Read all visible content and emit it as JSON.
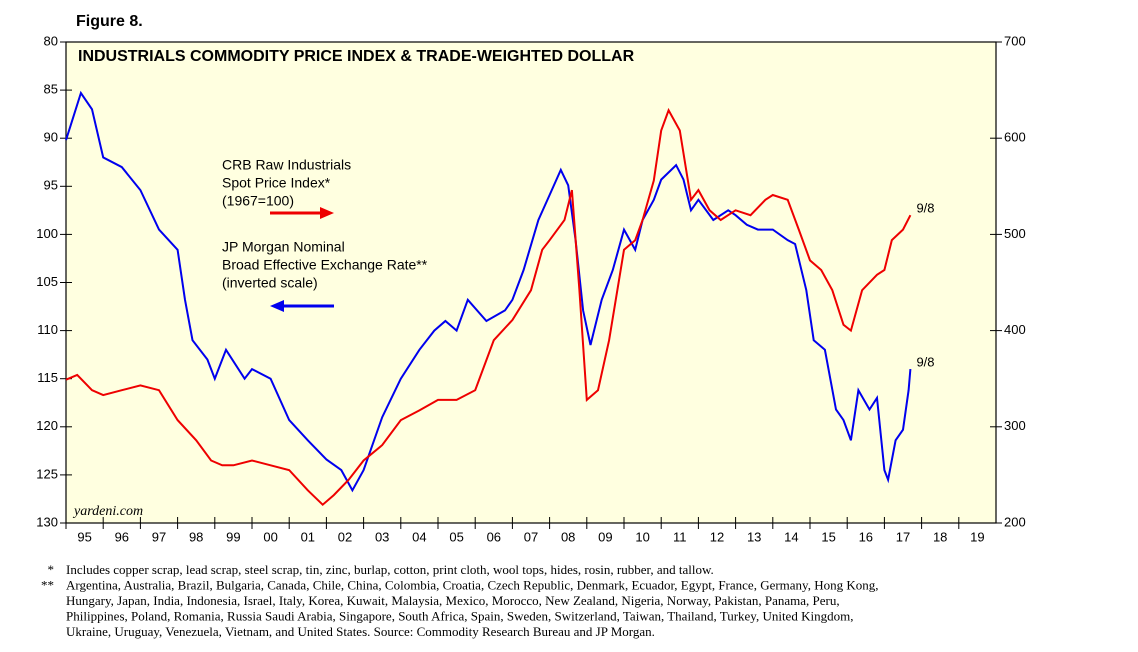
{
  "chart_data": {
    "type": "line",
    "figure_label": "Figure 8.",
    "title": "INDUSTRIALS COMMODITY PRICE INDEX & TRADE-WEIGHTED DOLLAR",
    "source_tag": "yardeni.com",
    "xlim": [
      1995,
      2020
    ],
    "xticks": [
      {
        "value": 1995,
        "label": "95"
      },
      {
        "value": 1996,
        "label": "96"
      },
      {
        "value": 1997,
        "label": "97"
      },
      {
        "value": 1998,
        "label": "98"
      },
      {
        "value": 1999,
        "label": "99"
      },
      {
        "value": 2000,
        "label": "00"
      },
      {
        "value": 2001,
        "label": "01"
      },
      {
        "value": 2002,
        "label": "02"
      },
      {
        "value": 2003,
        "label": "03"
      },
      {
        "value": 2004,
        "label": "04"
      },
      {
        "value": 2005,
        "label": "05"
      },
      {
        "value": 2006,
        "label": "06"
      },
      {
        "value": 2007,
        "label": "07"
      },
      {
        "value": 2008,
        "label": "08"
      },
      {
        "value": 2009,
        "label": "09"
      },
      {
        "value": 2010,
        "label": "10"
      },
      {
        "value": 2011,
        "label": "11"
      },
      {
        "value": 2012,
        "label": "12"
      },
      {
        "value": 2013,
        "label": "13"
      },
      {
        "value": 2014,
        "label": "14"
      },
      {
        "value": 2015,
        "label": "15"
      },
      {
        "value": 2016,
        "label": "16"
      },
      {
        "value": 2017,
        "label": "17"
      },
      {
        "value": 2018,
        "label": "18"
      },
      {
        "value": 2019,
        "label": "19"
      }
    ],
    "ylim": [
      130,
      80
    ],
    "yticks": [
      80,
      85,
      90,
      95,
      100,
      105,
      110,
      115,
      120,
      125,
      130
    ],
    "y2lim": [
      200,
      700
    ],
    "y2ticks": [
      200,
      300,
      400,
      500,
      600,
      700
    ],
    "series": [
      {
        "name": "JP Morgan Nominal Broad Effective Exchange Rate** (inverted scale)",
        "legend_lines": [
          "JP Morgan Nominal",
          "Broad Effective Exchange Rate**",
          "(inverted scale)"
        ],
        "color": "#0000ee",
        "axis": "y",
        "end_label": "9/8",
        "x": [
          1995.0,
          1995.4,
          1995.7,
          1996.0,
          1996.5,
          1997.0,
          1997.5,
          1998.0,
          1998.2,
          1998.4,
          1998.8,
          1999.0,
          1999.3,
          1999.8,
          2000.0,
          2000.5,
          2001.0,
          2001.5,
          2002.0,
          2002.4,
          2002.7,
          2003.0,
          2003.5,
          2004.0,
          2004.5,
          2004.9,
          2005.2,
          2005.5,
          2005.8,
          2006.3,
          2006.8,
          2007.0,
          2007.3,
          2007.7,
          2008.0,
          2008.3,
          2008.5,
          2008.7,
          2008.9,
          2009.1,
          2009.4,
          2009.7,
          2010.0,
          2010.3,
          2010.5,
          2010.8,
          2011.0,
          2011.4,
          2011.6,
          2011.8,
          2012.0,
          2012.4,
          2012.8,
          2013.0,
          2013.3,
          2013.6,
          2014.0,
          2014.4,
          2014.6,
          2014.9,
          2015.1,
          2015.4,
          2015.7,
          2015.9,
          2016.1,
          2016.3,
          2016.6,
          2016.8,
          2017.0,
          2017.1,
          2017.3,
          2017.5,
          2017.65,
          2017.7
        ],
        "values": [
          90.2,
          85.3,
          87,
          92,
          93,
          95.4,
          99.5,
          101.6,
          106.8,
          111,
          113,
          115,
          112,
          115,
          114,
          115,
          119.3,
          121.4,
          123.4,
          124.5,
          126.6,
          124.5,
          119,
          115,
          112,
          110,
          109,
          110,
          106.8,
          109,
          107.9,
          106.8,
          103.7,
          98.5,
          95.9,
          93.3,
          94.9,
          100.6,
          107.9,
          111.5,
          106.8,
          103.7,
          99.5,
          101.6,
          98.5,
          96.4,
          94.3,
          92.8,
          94.3,
          97.5,
          96.4,
          98.5,
          97.5,
          98,
          99,
          99.5,
          99.5,
          100.6,
          101,
          105.8,
          111,
          112,
          118.2,
          119.3,
          121.4,
          116.2,
          118.2,
          117,
          124.5,
          125.5,
          121.4,
          120.3,
          116.2,
          114
        ]
      },
      {
        "name": "CRB Raw Industrials Spot Price Index* (1967=100)",
        "legend_lines": [
          "CRB Raw Industrials",
          "Spot Price Index*",
          "(1967=100)"
        ],
        "color": "#ee0000",
        "axis": "y2",
        "end_label": "9/8",
        "x": [
          1995.0,
          1995.3,
          1995.7,
          1996.0,
          1996.5,
          1997.0,
          1997.5,
          1998.0,
          1998.5,
          1998.9,
          1999.2,
          1999.5,
          2000.0,
          2000.5,
          2001.0,
          2001.5,
          2001.9,
          2002.2,
          2002.6,
          2003.0,
          2003.5,
          2004.0,
          2004.5,
          2005.0,
          2005.5,
          2006.0,
          2006.5,
          2007.0,
          2007.5,
          2007.8,
          2008.0,
          2008.4,
          2008.6,
          2008.8,
          2009.0,
          2009.3,
          2009.6,
          2010.0,
          2010.3,
          2010.5,
          2010.8,
          2011.0,
          2011.2,
          2011.5,
          2011.8,
          2012.0,
          2012.3,
          2012.6,
          2013.0,
          2013.4,
          2013.8,
          2014.0,
          2014.4,
          2014.7,
          2015.0,
          2015.3,
          2015.6,
          2015.9,
          2016.1,
          2016.4,
          2016.8,
          2017.0,
          2017.2,
          2017.5,
          2017.7
        ],
        "values": [
          349,
          354,
          338,
          333,
          338,
          343,
          338,
          307,
          286,
          265,
          260,
          260,
          265,
          260,
          255,
          234,
          219,
          229,
          245,
          265,
          281,
          307,
          317,
          328,
          328,
          338,
          390,
          411,
          442,
          484,
          494,
          515,
          546,
          442,
          328,
          338,
          390,
          484,
          494,
          515,
          556,
          608,
          629,
          608,
          536,
          546,
          525,
          515,
          525,
          520,
          536,
          541,
          536,
          505,
          473,
          463,
          442,
          406,
          400,
          442,
          458,
          463,
          494,
          505,
          520
        ]
      }
    ],
    "footnotes": [
      {
        "marker": "*",
        "lines": [
          "Includes copper scrap, lead scrap, steel scrap, tin, zinc, burlap, cotton, print cloth, wool tops, hides, rosin, rubber, and tallow."
        ]
      },
      {
        "marker": "**",
        "lines": [
          "Argentina, Australia, Brazil, Bulgaria, Canada, Chile, China, Colombia, Croatia, Czech Republic, Denmark, Ecuador, Egypt, France, Germany, Hong Kong,",
          "Hungary, Japan, India, Indonesia, Israel, Italy, Korea, Kuwait, Malaysia, Mexico, Morocco, New Zealand, Nigeria, Norway, Pakistan, Panama, Peru,",
          "Philippines, Poland, Romania, Russia Saudi Arabia, Singapore, South Africa, Spain, Sweden, Switzerland, Taiwan, Thailand, Turkey, United Kingdom,",
          "Ukraine, Uruguay, Venezuela, Vietnam, and United States. Source: Commodity Research Bureau and JP Morgan."
        ]
      }
    ]
  }
}
